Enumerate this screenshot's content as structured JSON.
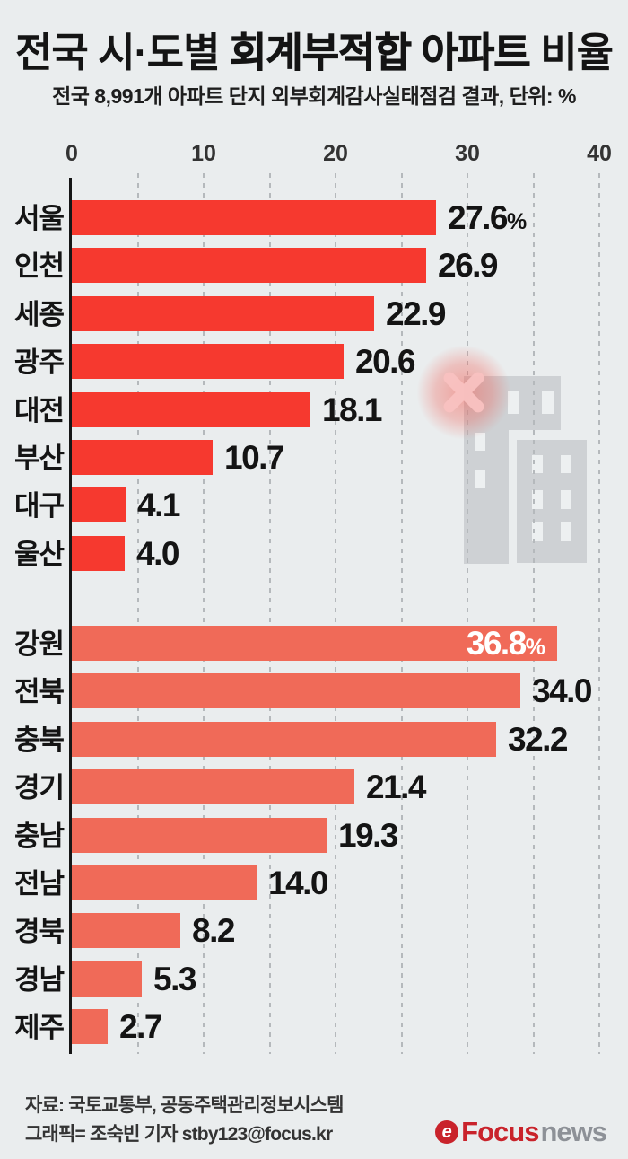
{
  "title": {
    "part1": "전국 시·도별 ",
    "part2": "회계부적합 아파트",
    "part3": " 비율",
    "full": "전국 시·도별 회계부적합 아파트 비율"
  },
  "subtitle": "전국 8,991개 아파트 단지 외부회계감사실태점검 결과, 단위: %",
  "chart_data": {
    "type": "bar",
    "orientation": "horizontal",
    "title": "전국 시·도별 회계부적합 아파트 비율",
    "subtitle": "전국 8,991개 아파트 단지 외부회계감사실태점검 결과, 단위: %",
    "unit": "%",
    "xlim": [
      0,
      40
    ],
    "x_ticks": [
      0,
      10,
      20,
      30,
      40
    ],
    "grid": "dashed-vertical",
    "legend": "none",
    "groups": [
      {
        "name": "metropolitan-cities",
        "bar_color": "#f6392f",
        "categories": [
          "서울",
          "인천",
          "세종",
          "광주",
          "대전",
          "부산",
          "대구",
          "울산"
        ],
        "values": [
          27.6,
          26.9,
          22.9,
          20.6,
          18.1,
          10.7,
          4.1,
          4.0
        ],
        "rows": [
          {
            "label": "서울",
            "value": 27.6,
            "display": "27.6",
            "suffix": "%",
            "inside": false
          },
          {
            "label": "인천",
            "value": 26.9,
            "display": "26.9",
            "suffix": "",
            "inside": false
          },
          {
            "label": "세종",
            "value": 22.9,
            "display": "22.9",
            "suffix": "",
            "inside": false
          },
          {
            "label": "광주",
            "value": 20.6,
            "display": "20.6",
            "suffix": "",
            "inside": false
          },
          {
            "label": "대전",
            "value": 18.1,
            "display": "18.1",
            "suffix": "",
            "inside": false
          },
          {
            "label": "부산",
            "value": 10.7,
            "display": "10.7",
            "suffix": "",
            "inside": false
          },
          {
            "label": "대구",
            "value": 4.1,
            "display": "4.1",
            "suffix": "",
            "inside": false
          },
          {
            "label": "울산",
            "value": 4.0,
            "display": "4.0",
            "suffix": "",
            "inside": false
          }
        ]
      },
      {
        "name": "provinces",
        "bar_color": "#f06a58",
        "categories": [
          "강원",
          "전북",
          "충북",
          "경기",
          "충남",
          "전남",
          "경북",
          "경남",
          "제주"
        ],
        "values": [
          36.8,
          34.0,
          32.2,
          21.4,
          19.3,
          14.0,
          8.2,
          5.3,
          2.7
        ],
        "rows": [
          {
            "label": "강원",
            "value": 36.8,
            "display": "36.8",
            "suffix": "%",
            "inside": true
          },
          {
            "label": "전북",
            "value": 34.0,
            "display": "34.0",
            "suffix": "",
            "inside": false
          },
          {
            "label": "충북",
            "value": 32.2,
            "display": "32.2",
            "suffix": "",
            "inside": false
          },
          {
            "label": "경기",
            "value": 21.4,
            "display": "21.4",
            "suffix": "",
            "inside": false
          },
          {
            "label": "충남",
            "value": 19.3,
            "display": "19.3",
            "suffix": "",
            "inside": false
          },
          {
            "label": "전남",
            "value": 14.0,
            "display": "14.0",
            "suffix": "",
            "inside": false
          },
          {
            "label": "경북",
            "value": 8.2,
            "display": "8.2",
            "suffix": "",
            "inside": false
          },
          {
            "label": "경남",
            "value": 5.3,
            "display": "5.3",
            "suffix": "",
            "inside": false
          },
          {
            "label": "제주",
            "value": 2.7,
            "display": "2.7",
            "suffix": "",
            "inside": false
          }
        ]
      }
    ]
  },
  "footer": {
    "source": "자료: 국토교통부, 공동주택관리정보시스템",
    "credit": "그래픽= 조숙빈 기자 stby123@focus.kr"
  },
  "logo": {
    "icon": "e",
    "primary": "Focus",
    "secondary": "news"
  },
  "colors": {
    "background": "#eaedee",
    "bar_city": "#f6392f",
    "bar_province": "#f06a58",
    "grid": "#b5b9bc",
    "axis": "#161616",
    "value_text": "#141414",
    "value_text_inside": "#ffffff",
    "building": "#ced1d4",
    "building_window": "#edf0f1",
    "x_mark": "#f9c2c1",
    "x_glow": "#f2554b",
    "logo_red": "#c9232b",
    "logo_gray": "#8d9197"
  }
}
